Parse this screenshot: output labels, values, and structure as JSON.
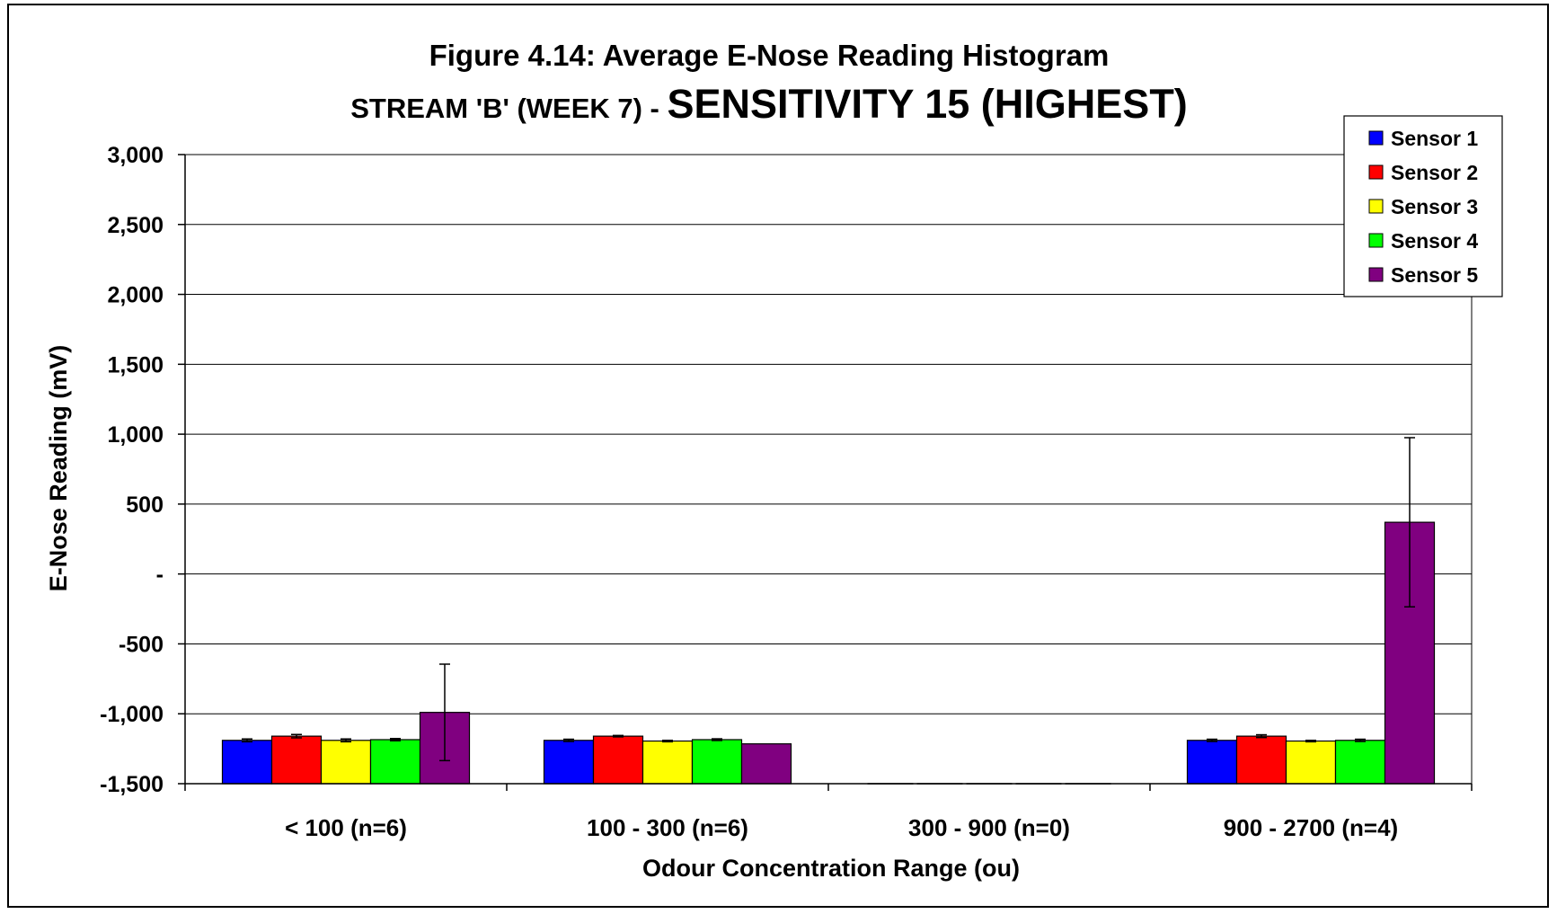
{
  "chart_data": {
    "type": "bar",
    "title": "Figure 4.14: Average E-Nose Reading Histogram",
    "subtitle_prefix": "STREAM 'B' (WEEK 7) - ",
    "subtitle_emphasis": "SENSITIVITY 15 (HIGHEST)",
    "xlabel": "Odour Concentration Range (ou)",
    "ylabel": "E-Nose Reading (mV)",
    "ylim": [
      -1500,
      3000
    ],
    "ytick_step": 500,
    "yticks": [
      "-1,500",
      "-1,000",
      "-500",
      "-",
      "500",
      "1,000",
      "1,500",
      "2,000",
      "2,500",
      "3,000"
    ],
    "grid": true,
    "legend_position": "top-right",
    "categories": [
      "< 100 (n=6)",
      "100 - 300 (n=6)",
      "300 - 900 (n=0)",
      "900 - 2700 (n=4)"
    ],
    "series": [
      {
        "name": "Sensor 1",
        "color": "#0000ff",
        "values": [
          -1190,
          -1190,
          null,
          -1190
        ],
        "errors": [
          10,
          8,
          null,
          8
        ]
      },
      {
        "name": "Sensor 2",
        "color": "#ff0000",
        "values": [
          -1160,
          -1160,
          null,
          -1160
        ],
        "errors": [
          12,
          5,
          null,
          10
        ]
      },
      {
        "name": "Sensor 3",
        "color": "#ffff00",
        "values": [
          -1190,
          -1195,
          null,
          -1195
        ],
        "errors": [
          10,
          5,
          null,
          5
        ]
      },
      {
        "name": "Sensor 4",
        "color": "#00ff00",
        "values": [
          -1185,
          -1185,
          null,
          -1190
        ],
        "errors": [
          8,
          6,
          null,
          8
        ]
      },
      {
        "name": "Sensor 5",
        "color": "#800080",
        "values": [
          -990,
          -1215,
          null,
          370
        ],
        "errors": [
          345,
          0,
          null,
          605
        ]
      }
    ]
  }
}
